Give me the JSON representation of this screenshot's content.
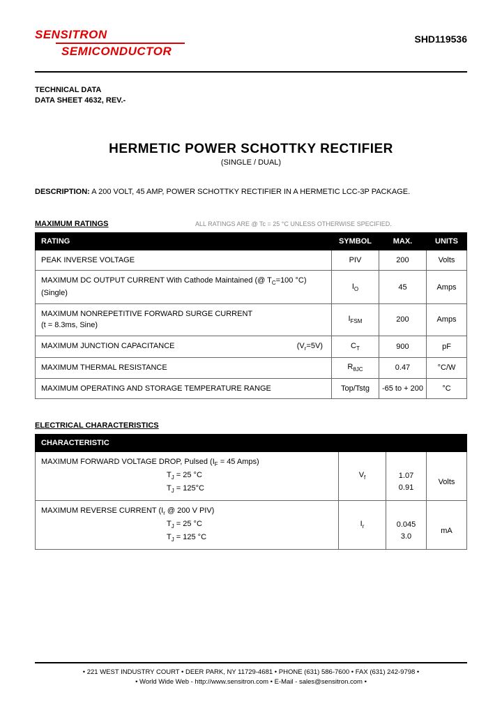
{
  "header": {
    "logo_line1": "SENSITRON",
    "logo_line2": "SEMICONDUCTOR",
    "part_number": "SHD119536",
    "tech_data_line1": "TECHNICAL DATA",
    "tech_data_line2": "DATA SHEET 4632, REV.-"
  },
  "title": {
    "main": "HERMETIC POWER SCHOTTKY RECTIFIER",
    "sub": "(SINGLE / DUAL)"
  },
  "description": {
    "label": "DESCRIPTION:",
    "text": " A 200 VOLT, 45 AMP, POWER SCHOTTKY RECTIFIER IN A HERMETIC LCC-3P PACKAGE."
  },
  "ratings": {
    "heading": "MAXIMUM RATINGS",
    "note": "ALL RATINGS ARE @ Tc = 25 °C UNLESS OTHERWISE SPECIFIED.",
    "headers": {
      "rating": "RATING",
      "symbol": "SYMBOL",
      "max": "MAX.",
      "units": "UNITS"
    },
    "rows": [
      {
        "rating": "PEAK INVERSE VOLTAGE",
        "symbol": "PIV",
        "max": "200",
        "units": "Volts"
      },
      {
        "rating": "MAXIMUM DC OUTPUT CURRENT With Cathode Maintained (@ T",
        "rating_sub": "C",
        "rating_tail": "=100 °C)",
        "rating_line2": "(Single)",
        "symbol": "I",
        "symbol_sub": "O",
        "max": "45",
        "units": "Amps"
      },
      {
        "rating": "MAXIMUM NONREPETITIVE FORWARD SURGE CURRENT",
        "rating_line2": "(t = 8.3ms, Sine)",
        "symbol": "I",
        "symbol_sub": "FSM",
        "max": "200",
        "units": "Amps"
      },
      {
        "rating": "MAXIMUM JUNCTION CAPACITANCE",
        "rating_tail_spaced": "(V",
        "rating_tail_sub": "r",
        "rating_tail_end": "=5V)",
        "symbol": "C",
        "symbol_sub": "T",
        "max": "900",
        "units": "pF"
      },
      {
        "rating": "MAXIMUM THERMAL RESISTANCE",
        "symbol": "R",
        "symbol_sub": "θJC",
        "max": "0.47",
        "units": "°C/W"
      },
      {
        "rating": "MAXIMUM OPERATING AND STORAGE TEMPERATURE RANGE",
        "symbol": "Top/Tstg",
        "max": "-65 to + 200",
        "units": "°C"
      }
    ]
  },
  "electrical": {
    "heading": "ELECTRICAL CHARACTERISTICS",
    "header": "CHARACTERISTIC",
    "rows": [
      {
        "line1": "MAXIMUM FORWARD VOLTAGE DROP, Pulsed   (I",
        "line1_sub": "F",
        "line1_tail": " = 45 Amps)",
        "cond1_pre": "T",
        "cond1_sub": "J",
        "cond1_tail": " = 25 °C",
        "cond2_pre": "T",
        "cond2_sub": "J",
        "cond2_tail": " = 125°C",
        "symbol": "V",
        "symbol_sub": "f",
        "val1": "1.07",
        "val2": "0.91",
        "units": "Volts"
      },
      {
        "line1": "MAXIMUM REVERSE CURRENT (I",
        "line1_sub": "r",
        "line1_tail": " @ 200 V PIV)",
        "cond1_pre": "T",
        "cond1_sub": "J",
        "cond1_tail": " = 25 °C",
        "cond2_pre": "T",
        "cond2_sub": "J",
        "cond2_tail": " = 125 °C",
        "symbol": "I",
        "symbol_sub": "r",
        "val1": "0.045",
        "val2": "3.0",
        "units": "mA"
      }
    ]
  },
  "footer": {
    "line1": "• 221 WEST INDUSTRY COURT • DEER PARK, NY 11729-4681 • PHONE (631) 586-7600 • FAX (631) 242-9798 •",
    "line2": "• World Wide Web - http://www.sensitron.com • E-Mail - sales@sensitron.com •"
  }
}
